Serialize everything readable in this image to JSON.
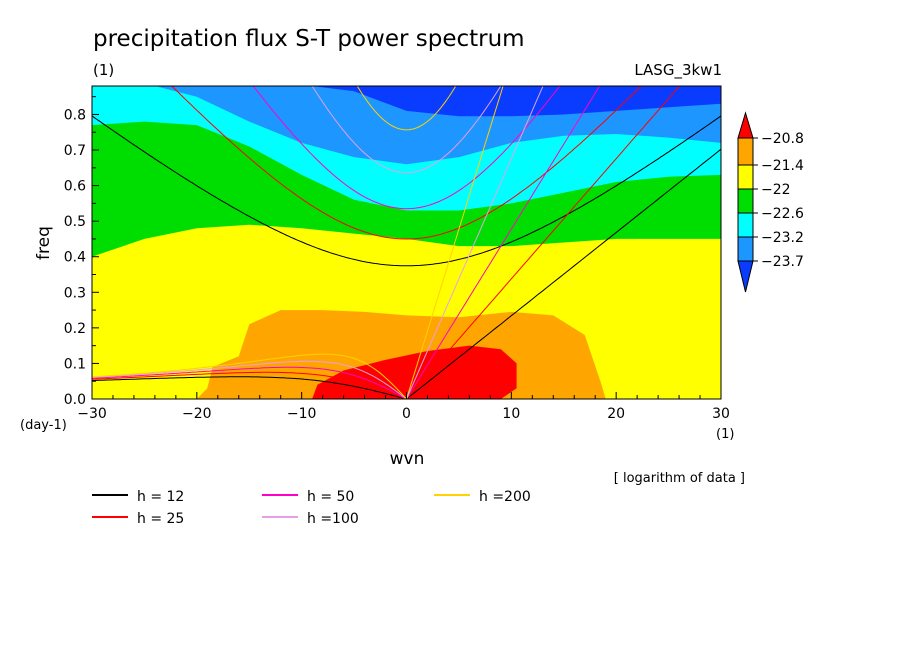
{
  "header": {
    "title": "precipitation flux S-T power spectrum",
    "subtitle_left": "(1)",
    "subtitle_right": "LASG_3kw1",
    "note": "[ logarithm of data ]"
  },
  "chart_data": {
    "type": "contour",
    "title": "precipitation flux S-T power spectrum",
    "xlabel": "wvn",
    "ylabel": "freq",
    "x_unit": "(1)",
    "y_unit": "(day-1)",
    "xlim": [
      -30,
      30
    ],
    "ylim": [
      0,
      0.88
    ],
    "x_ticks": [
      -30,
      -20,
      -10,
      0,
      10,
      20,
      30
    ],
    "x_tick_labels": [
      "−30",
      "−20",
      "−10",
      "0",
      "10",
      "20",
      "30"
    ],
    "y_ticks": [
      0,
      0.1,
      0.2,
      0.3,
      0.4,
      0.5,
      0.6,
      0.7,
      0.8
    ],
    "y_tick_labels": [
      "0.0",
      "0.1",
      "0.2",
      "0.3",
      "0.4",
      "0.5",
      "0.6",
      "0.7",
      "0.8"
    ],
    "levels": [
      -23.7,
      -23.2,
      -22.6,
      -22,
      -21.4,
      -20.8
    ],
    "level_labels": [
      "−23.7",
      "−23.2",
      "−22.6",
      "−22",
      "−21.4",
      "−20.8"
    ],
    "fill_colors": [
      "#0a3cff",
      "#1e96ff",
      "#00ffff",
      "#00dd00",
      "#ffff00",
      "#ffa500",
      "#ff0000"
    ],
    "boundaries": {
      "-23.7": [
        [
          -30,
          0.88
        ],
        [
          -20,
          0.88
        ],
        [
          -13,
          0.88
        ],
        [
          -9,
          0.88
        ],
        [
          -5,
          0.865
        ],
        [
          0,
          0.81
        ],
        [
          5,
          0.795
        ],
        [
          10,
          0.795
        ],
        [
          15,
          0.8
        ],
        [
          20,
          0.81
        ],
        [
          25,
          0.82
        ],
        [
          30,
          0.83
        ]
      ],
      "-23.2": [
        [
          -30,
          0.88
        ],
        [
          -24,
          0.88
        ],
        [
          -20,
          0.85
        ],
        [
          -15,
          0.78
        ],
        [
          -10,
          0.72
        ],
        [
          -5,
          0.68
        ],
        [
          0,
          0.66
        ],
        [
          5,
          0.68
        ],
        [
          10,
          0.72
        ],
        [
          15,
          0.74
        ],
        [
          20,
          0.745
        ],
        [
          25,
          0.735
        ],
        [
          30,
          0.72
        ]
      ],
      "-22.6": [
        [
          -30,
          0.77
        ],
        [
          -25,
          0.78
        ],
        [
          -20,
          0.77
        ],
        [
          -15,
          0.71
        ],
        [
          -10,
          0.63
        ],
        [
          -5,
          0.56
        ],
        [
          0,
          0.53
        ],
        [
          5,
          0.53
        ],
        [
          10,
          0.55
        ],
        [
          15,
          0.58
        ],
        [
          20,
          0.61
        ],
        [
          25,
          0.625
        ],
        [
          30,
          0.63
        ]
      ],
      "-22": [
        [
          -30,
          0.4
        ],
        [
          -25,
          0.45
        ],
        [
          -20,
          0.48
        ],
        [
          -15,
          0.49
        ],
        [
          -10,
          0.48
        ],
        [
          -5,
          0.465
        ],
        [
          0,
          0.45
        ],
        [
          5,
          0.43
        ],
        [
          10,
          0.43
        ],
        [
          15,
          0.44
        ],
        [
          20,
          0.45
        ],
        [
          25,
          0.45
        ],
        [
          30,
          0.45
        ]
      ],
      "-21.4": [
        [
          -30,
          0
        ],
        [
          -20,
          0
        ],
        [
          -19,
          0.03
        ],
        [
          -18.5,
          0.09
        ],
        [
          -16,
          0.12
        ],
        [
          -15,
          0.21
        ],
        [
          -12,
          0.25
        ],
        [
          -8,
          0.25
        ],
        [
          -4,
          0.245
        ],
        [
          0,
          0.235
        ],
        [
          5,
          0.23
        ],
        [
          10,
          0.245
        ],
        [
          14,
          0.235
        ],
        [
          17,
          0.18
        ],
        [
          18.5,
          0.05
        ],
        [
          19,
          0
        ],
        [
          30,
          0
        ]
      ],
      "-20.8": [
        [
          -30,
          0
        ],
        [
          -9,
          0
        ],
        [
          -8.5,
          0.04
        ],
        [
          -6,
          0.08
        ],
        [
          -2,
          0.11
        ],
        [
          2,
          0.135
        ],
        [
          6,
          0.15
        ],
        [
          9,
          0.14
        ],
        [
          10.5,
          0.1
        ],
        [
          10.5,
          0.03
        ],
        [
          9,
          0
        ],
        [
          30,
          0
        ]
      ]
    },
    "dispersion_curves": [
      {
        "label": "h = 12",
        "h": 12,
        "color": "#000000"
      },
      {
        "label": "h = 25",
        "h": 25,
        "color": "#ff0000"
      },
      {
        "label": "h = 50",
        "h": 50,
        "color": "#ff00c8"
      },
      {
        "label": "h =100",
        "h": 100,
        "color": "#e6a0e6"
      },
      {
        "label": "h =200",
        "h": 200,
        "color": "#ffd200"
      }
    ]
  }
}
